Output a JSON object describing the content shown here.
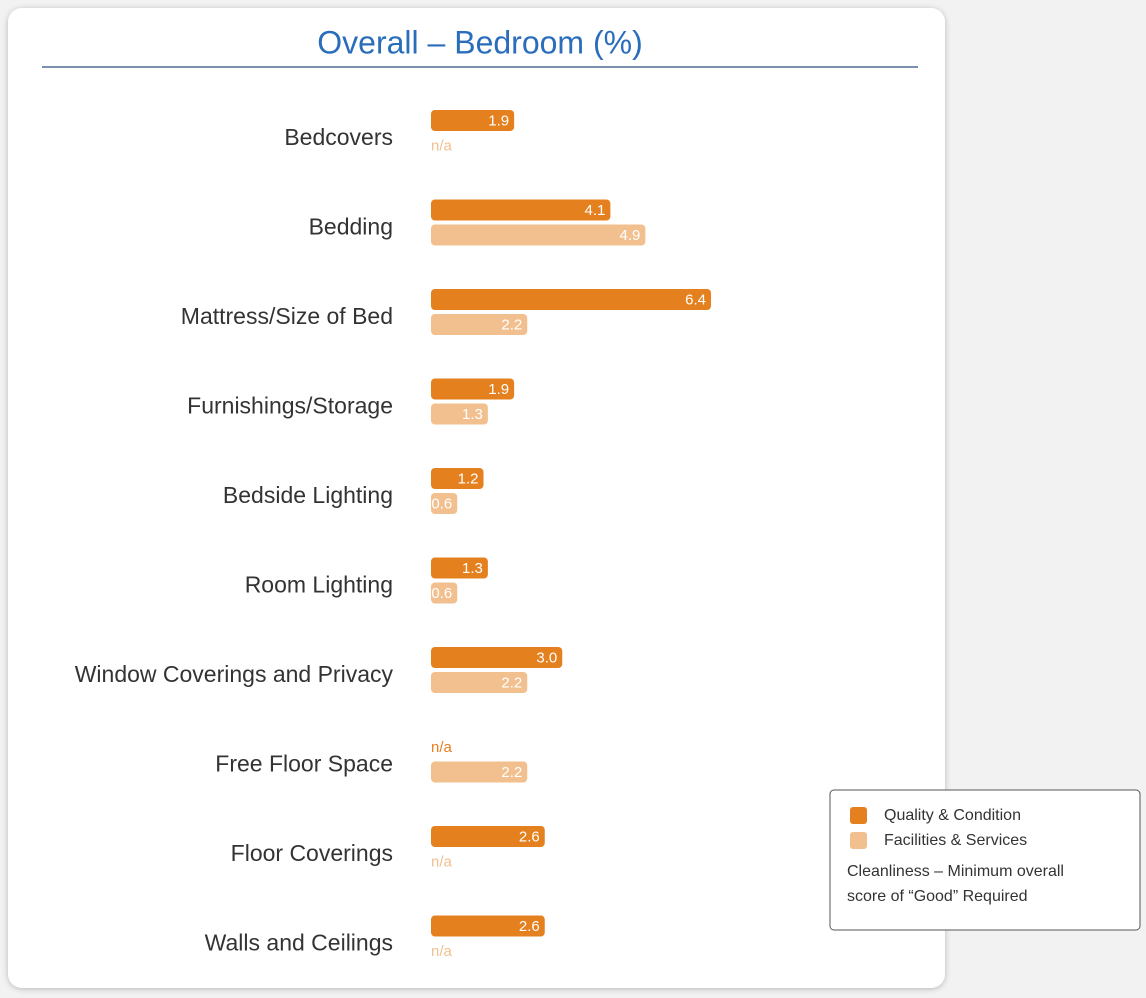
{
  "chart_data": {
    "type": "hbar",
    "title": "Overall – Bedroom (%)",
    "categories": [
      "Bedcovers",
      "Bedding",
      "Mattress/Size of Bed",
      "Furnishings/Storage",
      "Bedside Lighting",
      "Room Lighting",
      "Window Coverings and Privacy",
      "Free Floor Space",
      "Floor Coverings",
      "Walls and Ceilings"
    ],
    "series": [
      {
        "name": "Quality & Condition",
        "color": "#e5801f",
        "values": [
          1.9,
          4.1,
          6.4,
          1.9,
          1.2,
          1.3,
          3.0,
          null,
          2.6,
          2.6
        ],
        "value_labels": [
          "1.9",
          "4.1",
          "6.4",
          "1.9",
          "1.2",
          "1.3",
          "3.0",
          "n/a",
          "2.6",
          "2.6"
        ]
      },
      {
        "name": "Facilities & Services",
        "color": "#f2c08f",
        "values": [
          null,
          4.9,
          2.2,
          1.3,
          0.6,
          0.6,
          2.2,
          2.2,
          null,
          null
        ],
        "value_labels": [
          "n/a",
          "4.9",
          "2.2",
          "1.3",
          "0.6",
          "0.6",
          "2.2",
          "2.2",
          "n/a",
          "n/a"
        ]
      }
    ],
    "note": [
      "Cleanliness – Minimum overall",
      "score of “Good” Required"
    ]
  }
}
